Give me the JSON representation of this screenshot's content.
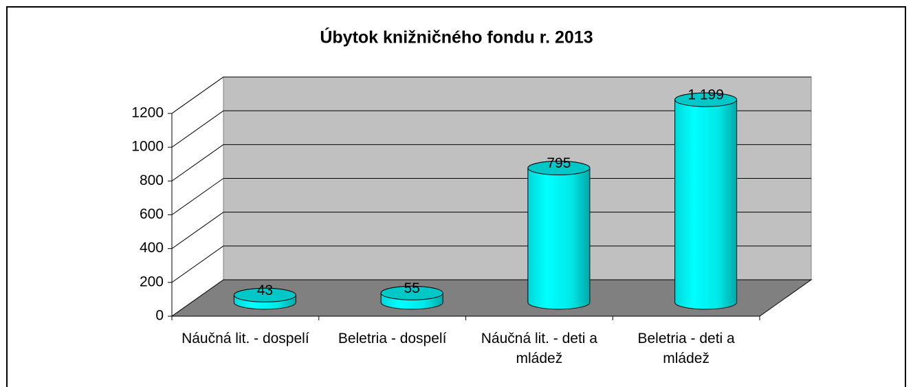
{
  "chart_data": {
    "type": "bar3d",
    "title": "Úbytok knižničného fondu r. 2013",
    "categories": [
      "Náučná lit. - dospelí",
      "Beletria - dospelí",
      "Náučná lit. - deti a mládež",
      "Beletria - deti a mládež"
    ],
    "values": [
      43,
      55,
      795,
      1199
    ],
    "value_labels": [
      "43",
      "55",
      "795",
      "1 199"
    ],
    "color": "#00ffff",
    "ylim": [
      0,
      1200
    ],
    "yticks": [
      0,
      200,
      400,
      600,
      800,
      1000,
      1200
    ],
    "grid": true
  }
}
